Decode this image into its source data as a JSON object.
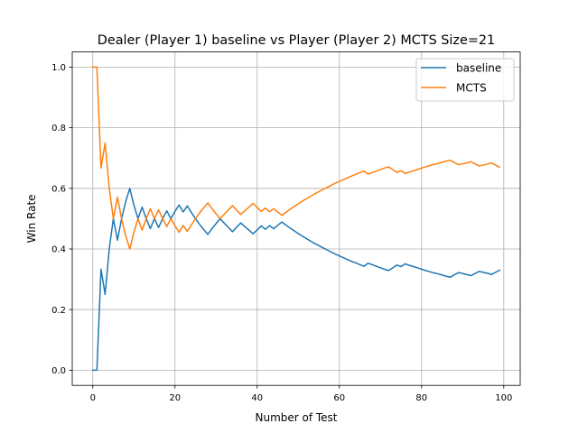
{
  "chart_data": {
    "type": "line",
    "title": "Dealer (Player 1) baseline vs Player (Player 2) MCTS Size=21",
    "xlabel": "Number of Test",
    "ylabel": "Win Rate",
    "xlim": [
      -5,
      104
    ],
    "ylim": [
      -0.05,
      1.05
    ],
    "xticks": [
      0,
      20,
      40,
      60,
      80,
      100
    ],
    "xtick_labels": [
      "0",
      "20",
      "40",
      "60",
      "80",
      "100"
    ],
    "yticks": [
      0.0,
      0.2,
      0.4,
      0.6,
      0.8,
      1.0
    ],
    "ytick_labels": [
      "0.0",
      "0.2",
      "0.4",
      "0.6",
      "0.8",
      "1.0"
    ],
    "grid": true,
    "legend_position": "top-right",
    "x": [
      0,
      1,
      2,
      3,
      4,
      5,
      6,
      7,
      8,
      9,
      10,
      11,
      12,
      13,
      14,
      15,
      16,
      17,
      18,
      19,
      20,
      21,
      22,
      23,
      24,
      25,
      26,
      27,
      28,
      29,
      30,
      31,
      32,
      33,
      34,
      35,
      36,
      37,
      38,
      39,
      40,
      41,
      42,
      43,
      44,
      45,
      46,
      47,
      48,
      49,
      50,
      51,
      52,
      53,
      54,
      55,
      56,
      57,
      58,
      59,
      60,
      61,
      62,
      63,
      64,
      65,
      66,
      67,
      68,
      69,
      70,
      71,
      72,
      73,
      74,
      75,
      76,
      77,
      78,
      79,
      80,
      81,
      82,
      83,
      84,
      85,
      86,
      87,
      88,
      89,
      90,
      91,
      92,
      93,
      94,
      95,
      96,
      97,
      98,
      99
    ],
    "series": [
      {
        "name": "baseline",
        "color": "#1f77b4",
        "values": [
          0.0,
          0.0,
          0.333,
          0.25,
          0.4,
          0.5,
          0.429,
          0.5,
          0.556,
          0.6,
          0.545,
          0.5,
          0.538,
          0.5,
          0.467,
          0.5,
          0.471,
          0.5,
          0.526,
          0.5,
          0.524,
          0.545,
          0.522,
          0.542,
          0.52,
          0.5,
          0.481,
          0.464,
          0.448,
          0.467,
          0.484,
          0.5,
          0.485,
          0.471,
          0.457,
          0.472,
          0.486,
          0.474,
          0.462,
          0.45,
          0.463,
          0.476,
          0.465,
          0.477,
          0.467,
          0.478,
          0.489,
          0.479,
          0.469,
          0.46,
          0.451,
          0.442,
          0.434,
          0.426,
          0.418,
          0.411,
          0.404,
          0.397,
          0.39,
          0.383,
          0.377,
          0.371,
          0.365,
          0.359,
          0.354,
          0.348,
          0.343,
          0.353,
          0.348,
          0.343,
          0.338,
          0.333,
          0.329,
          0.338,
          0.347,
          0.342,
          0.351,
          0.346,
          0.342,
          0.338,
          0.333,
          0.329,
          0.325,
          0.321,
          0.318,
          0.314,
          0.31,
          0.307,
          0.315,
          0.322,
          0.319,
          0.316,
          0.312,
          0.319,
          0.326,
          0.323,
          0.32,
          0.316,
          0.323,
          0.33
        ]
      },
      {
        "name": "MCTS",
        "color": "#ff7f0e",
        "values": [
          1.0,
          1.0,
          0.667,
          0.75,
          0.6,
          0.5,
          0.571,
          0.5,
          0.444,
          0.4,
          0.455,
          0.5,
          0.462,
          0.5,
          0.533,
          0.5,
          0.529,
          0.5,
          0.474,
          0.5,
          0.476,
          0.455,
          0.478,
          0.458,
          0.48,
          0.5,
          0.519,
          0.536,
          0.552,
          0.533,
          0.516,
          0.5,
          0.515,
          0.529,
          0.543,
          0.528,
          0.514,
          0.526,
          0.538,
          0.55,
          0.537,
          0.524,
          0.535,
          0.523,
          0.533,
          0.522,
          0.511,
          0.521,
          0.531,
          0.54,
          0.549,
          0.558,
          0.566,
          0.574,
          0.582,
          0.589,
          0.596,
          0.603,
          0.61,
          0.617,
          0.623,
          0.629,
          0.635,
          0.641,
          0.646,
          0.652,
          0.657,
          0.647,
          0.652,
          0.657,
          0.662,
          0.667,
          0.671,
          0.662,
          0.653,
          0.658,
          0.649,
          0.654,
          0.658,
          0.662,
          0.667,
          0.671,
          0.675,
          0.679,
          0.682,
          0.686,
          0.69,
          0.693,
          0.685,
          0.678,
          0.681,
          0.684,
          0.688,
          0.681,
          0.674,
          0.677,
          0.68,
          0.684,
          0.677,
          0.67
        ]
      }
    ]
  }
}
